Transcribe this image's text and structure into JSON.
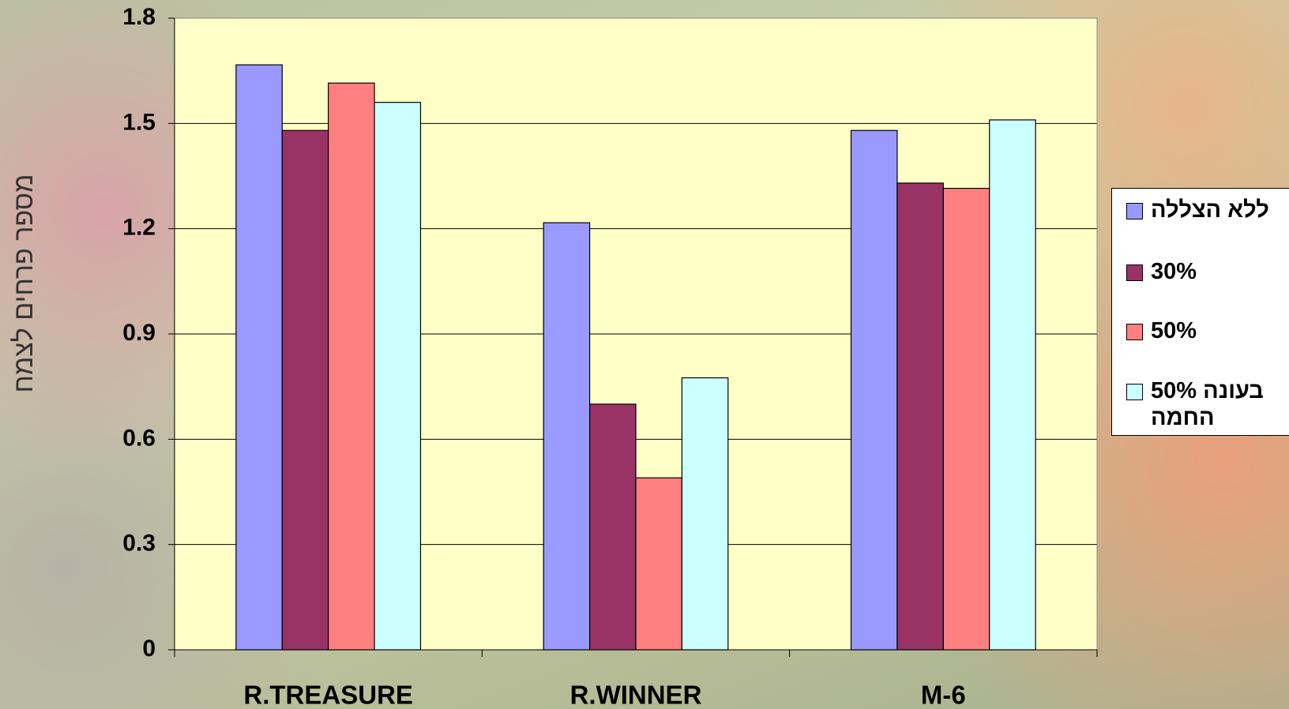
{
  "chart_data": {
    "type": "bar",
    "y_label": "מספר פרחים לצמח",
    "categories": [
      "R.TREASURE",
      "R.WINNER",
      "M-6"
    ],
    "series": [
      {
        "name": "ללא הצללה",
        "color": "#9999ff",
        "values": [
          1.667,
          1.217,
          1.48
        ]
      },
      {
        "name": "30%",
        "color": "#993366",
        "values": [
          1.48,
          0.7,
          1.33
        ]
      },
      {
        "name": "50%",
        "color": "#ff8080",
        "values": [
          1.615,
          0.49,
          1.315
        ]
      },
      {
        "name": "50% בעונה החמה",
        "color": "#ccffff",
        "values": [
          1.56,
          0.775,
          1.51
        ]
      }
    ],
    "ylim": [
      0,
      1.8
    ],
    "yticks": [
      0,
      0.3,
      0.6,
      0.9,
      1.2,
      1.5,
      1.8
    ],
    "grid": true,
    "legend": "right"
  }
}
